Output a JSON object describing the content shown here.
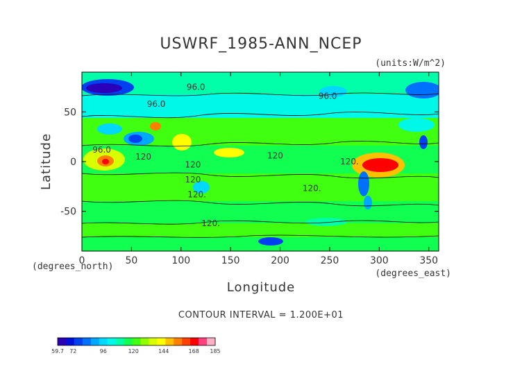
{
  "chart_data": {
    "type": "heatmap",
    "title": "USWRF_1985-ANN_NCEP",
    "units_label": "(units:W/m^2)",
    "xlabel": "Longitude",
    "ylabel": "Latitude",
    "x_unit_label": "(degrees_east)",
    "y_unit_label": "(degrees_north)",
    "contour_interval_label": "CONTOUR INTERVAL = 1.200E+01",
    "xlim": [
      0,
      360
    ],
    "ylim": [
      -90,
      90
    ],
    "x_ticks": [
      "0",
      "50",
      "100",
      "150",
      "200",
      "250",
      "300",
      "350"
    ],
    "x_tick_values": [
      0,
      50,
      100,
      150,
      200,
      250,
      300,
      350
    ],
    "y_ticks": [
      "50",
      "0",
      "-50"
    ],
    "y_tick_values": [
      50,
      0,
      -50
    ],
    "contour_labels": [
      {
        "text": "96.0",
        "lon": 115,
        "lat": 75
      },
      {
        "text": "96.0",
        "lon": 75,
        "lat": 58
      },
      {
        "text": "96.0",
        "lon": 248,
        "lat": 66
      },
      {
        "text": "96.0",
        "lon": 20,
        "lat": 12
      },
      {
        "text": "120",
        "lon": 62,
        "lat": 5
      },
      {
        "text": "120",
        "lon": 195,
        "lat": 6
      },
      {
        "text": "120",
        "lon": 112,
        "lat": -3
      },
      {
        "text": "120",
        "lon": 112,
        "lat": -18
      },
      {
        "text": "120.",
        "lon": 116,
        "lat": -33
      },
      {
        "text": "120.",
        "lon": 232,
        "lat": -27
      },
      {
        "text": "120.",
        "lon": 130,
        "lat": -62
      },
      {
        "text": "120.",
        "lon": 270,
        "lat": 0
      }
    ],
    "grid": false,
    "colorbar": {
      "min": 59.7,
      "max": 185,
      "tick_labels": [
        "59.7",
        "72",
        "96",
        "120",
        "144",
        "168",
        "185"
      ],
      "tick_values": [
        59.7,
        72,
        96,
        120,
        144,
        168,
        185
      ],
      "colors": [
        "#2a00b8",
        "#0010d8",
        "#0040f0",
        "#0070ff",
        "#00a8ff",
        "#00d8ff",
        "#00f8e8",
        "#00ffa8",
        "#10ff50",
        "#40ff10",
        "#90ff00",
        "#d8ff00",
        "#ffff00",
        "#ffc000",
        "#ff8000",
        "#ff4000",
        "#ff0000",
        "#ff4080",
        "#ffb0c8"
      ]
    }
  }
}
